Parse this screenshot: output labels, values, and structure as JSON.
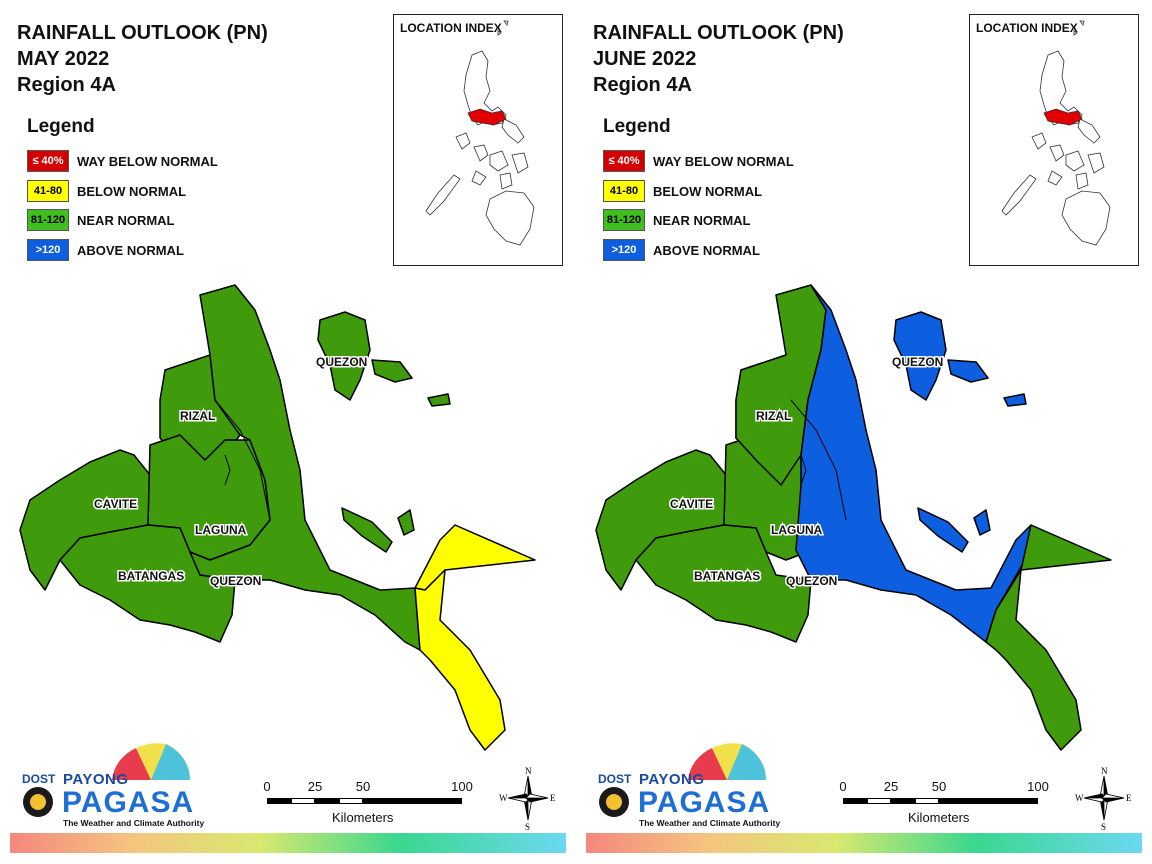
{
  "panels": [
    {
      "title_line1": "RAINFALL OUTLOOK (PN)",
      "title_line2": "MAY 2022",
      "title_line3": "Region 4A",
      "region_colors": {
        "cavite": "#3f9b0b",
        "rizal": "#3f9b0b",
        "laguna": "#3f9b0b",
        "batangas": "#3f9b0b",
        "quezon_main": "#3f9b0b",
        "quezon_east": "#3f9b0b",
        "quezon_south": "#ffff00",
        "polillo": "#3f9b0b"
      }
    },
    {
      "title_line1": "RAINFALL OUTLOOK (PN)",
      "title_line2": "JUNE 2022",
      "title_line3": "Region 4A",
      "region_colors": {
        "cavite": "#3f9b0b",
        "rizal": "#3f9b0b",
        "laguna": "#3f9b0b",
        "batangas": "#3f9b0b",
        "quezon_main": "#3f9b0b",
        "quezon_east": "#0d5fe0",
        "quezon_south": "#3f9b0b",
        "polillo": "#0d5fe0"
      }
    }
  ],
  "legend": {
    "title": "Legend",
    "items": [
      {
        "swatch": "≤ 40%",
        "label": "WAY BELOW NORMAL",
        "color": "#d40000",
        "text_color": "#ffffff"
      },
      {
        "swatch": "41-80",
        "label": "BELOW NORMAL",
        "color": "#ffff00",
        "text_color": "#000000"
      },
      {
        "swatch": "81-120",
        "label": "NEAR NORMAL",
        "color": "#3fbf1f",
        "text_color": "#000000"
      },
      {
        "swatch": ">120",
        "label": "ABOVE NORMAL",
        "color": "#0d5fe0",
        "text_color": "#ffffff"
      }
    ]
  },
  "inset": {
    "title": "LOCATION INDEX",
    "highlight_color": "#e00000"
  },
  "map_labels": {
    "quezon_north": "QUEZON",
    "rizal": "RIZAL",
    "cavite": "CAVITE",
    "laguna": "LAGUNA",
    "batangas": "BATANGAS",
    "quezon_south": "QUEZON"
  },
  "scale_bar": {
    "ticks": [
      "0",
      "25",
      "50",
      "100"
    ],
    "unit": "Kilometers"
  },
  "compass": {
    "n": "N",
    "s": "S",
    "e": "E",
    "w": "W"
  },
  "logo": {
    "dost": "DOST",
    "payong": "PAYONG",
    "pagasa": "PAGASA",
    "tagline": "The Weather and Climate Authority"
  }
}
